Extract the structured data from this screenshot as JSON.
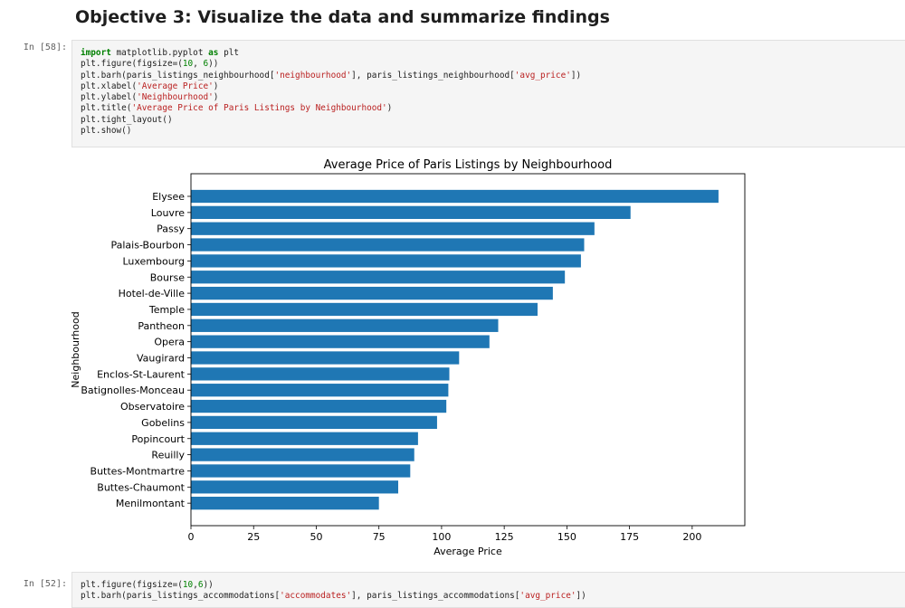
{
  "heading": "Objective 3: Visualize the data and summarize findings",
  "cells": [
    {
      "prompt": "In [58]:",
      "lines": [
        [
          {
            "t": "import",
            "c": "kw"
          },
          {
            "t": " matplotlib.pyplot "
          },
          {
            "t": "as",
            "c": "kw"
          },
          {
            "t": " plt"
          }
        ],
        [
          {
            "t": "plt.figure(figsize=("
          },
          {
            "t": "10",
            "c": "num"
          },
          {
            "t": ", "
          },
          {
            "t": "6",
            "c": "num"
          },
          {
            "t": "))"
          }
        ],
        [
          {
            "t": "plt.barh(paris_listings_neighbourhood["
          },
          {
            "t": "'neighbourhood'",
            "c": "str"
          },
          {
            "t": "], paris_listings_neighbourhood["
          },
          {
            "t": "'avg_price'",
            "c": "str"
          },
          {
            "t": "])"
          }
        ],
        [
          {
            "t": "plt.xlabel("
          },
          {
            "t": "'Average Price'",
            "c": "str"
          },
          {
            "t": ")"
          }
        ],
        [
          {
            "t": "plt.ylabel("
          },
          {
            "t": "'Neighbourhood'",
            "c": "str"
          },
          {
            "t": ")"
          }
        ],
        [
          {
            "t": "plt.title("
          },
          {
            "t": "'Average Price of Paris Listings by Neighbourhood'",
            "c": "str"
          },
          {
            "t": ")"
          }
        ],
        [
          {
            "t": "plt.tight_layout()"
          }
        ],
        [
          {
            "t": "plt.show()"
          }
        ]
      ]
    },
    {
      "prompt": "In [52]:",
      "lines": [
        [
          {
            "t": "plt.figure(figsize=("
          },
          {
            "t": "10",
            "c": "num"
          },
          {
            "t": ","
          },
          {
            "t": "6",
            "c": "num"
          },
          {
            "t": "))"
          }
        ],
        [
          {
            "t": "plt.barh(paris_listings_accommodations["
          },
          {
            "t": "'accommodates'",
            "c": "str"
          },
          {
            "t": "], paris_listings_accommodations["
          },
          {
            "t": "'avg_price'",
            "c": "str"
          },
          {
            "t": "])"
          }
        ]
      ]
    }
  ],
  "chart_data": {
    "type": "bar",
    "orientation": "horizontal",
    "title": "Average Price of Paris Listings by Neighbourhood",
    "xlabel": "Average Price",
    "ylabel": "Neighbourhood",
    "categories": [
      "Elysee",
      "Louvre",
      "Passy",
      "Palais-Bourbon",
      "Luxembourg",
      "Bourse",
      "Hotel-de-Ville",
      "Temple",
      "Pantheon",
      "Opera",
      "Vaugirard",
      "Enclos-St-Laurent",
      "Batignolles-Monceau",
      "Observatoire",
      "Gobelins",
      "Popincourt",
      "Reuilly",
      "Buttes-Montmartre",
      "Buttes-Chaumont",
      "Menilmontant"
    ],
    "values": [
      210.5,
      175.4,
      161.0,
      156.9,
      155.6,
      149.2,
      144.4,
      138.3,
      122.6,
      119.1,
      107.0,
      103.1,
      102.7,
      101.9,
      98.2,
      90.6,
      89.1,
      87.5,
      82.7,
      75.0
    ],
    "xticks": [
      0,
      25,
      50,
      75,
      100,
      125,
      150,
      175,
      200
    ],
    "xlim": [
      0,
      221
    ],
    "bar_color": "#1f77b4",
    "grid": false
  }
}
